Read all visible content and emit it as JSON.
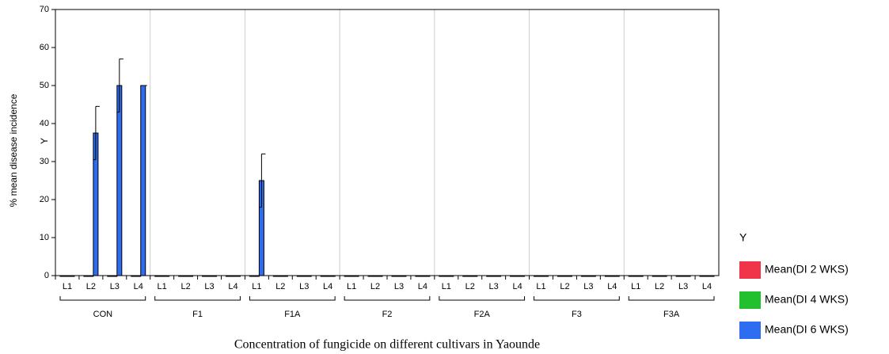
{
  "chart_data": {
    "type": "bar",
    "xlabel": "Concentration of fungicide on different cultivars in Yaounde",
    "ylabel": "% mean disease incidence",
    "y_axis_name": "Y",
    "legend_title": "Y",
    "legend_position": "right",
    "groups": [
      "CON",
      "F1",
      "F1A",
      "F2",
      "F2A",
      "F3",
      "F3A"
    ],
    "categories": [
      "L1",
      "L2",
      "L3",
      "L4",
      "L1",
      "L2",
      "L3",
      "L4",
      "L1",
      "L2",
      "L3",
      "L4",
      "L1",
      "L2",
      "L3",
      "L4",
      "L1",
      "L2",
      "L3",
      "L4",
      "L1",
      "L2",
      "L3",
      "L4",
      "L1",
      "L2",
      "L3",
      "L4"
    ],
    "series": [
      {
        "name": "Mean(DI 2 WKS)",
        "color": "#f0344a",
        "values": [
          0,
          0,
          0,
          0,
          0,
          0,
          0,
          0,
          0,
          0,
          0,
          0,
          0,
          0,
          0,
          0,
          0,
          0,
          0,
          0,
          0,
          0,
          0,
          0,
          0,
          0,
          0,
          0
        ]
      },
      {
        "name": "Mean(DI 4 WKS)",
        "color": "#22c02e",
        "values": [
          0,
          0,
          0,
          0,
          0,
          0,
          0,
          0,
          0,
          0,
          0,
          0,
          0,
          0,
          0,
          0,
          0,
          0,
          0,
          0,
          0,
          0,
          0,
          0,
          0,
          0,
          0,
          0
        ]
      },
      {
        "name": "Mean(DI 6 WKS)",
        "color": "#2f6df0",
        "values": [
          0,
          37.5,
          50,
          50,
          0,
          0,
          0,
          0,
          25,
          0,
          0,
          0,
          0,
          0,
          0,
          0,
          0,
          0,
          0,
          0,
          0,
          0,
          0,
          0,
          0,
          0,
          0,
          0
        ],
        "errors": [
          0,
          7,
          7,
          0,
          0,
          0,
          0,
          0,
          7,
          0,
          0,
          0,
          0,
          0,
          0,
          0,
          0,
          0,
          0,
          0,
          0,
          0,
          0,
          0,
          0,
          0,
          0,
          0
        ]
      }
    ],
    "ylim": [
      0,
      70
    ],
    "yticks": [
      0,
      10,
      20,
      30,
      40,
      50,
      60,
      70
    ],
    "grid": false
  }
}
